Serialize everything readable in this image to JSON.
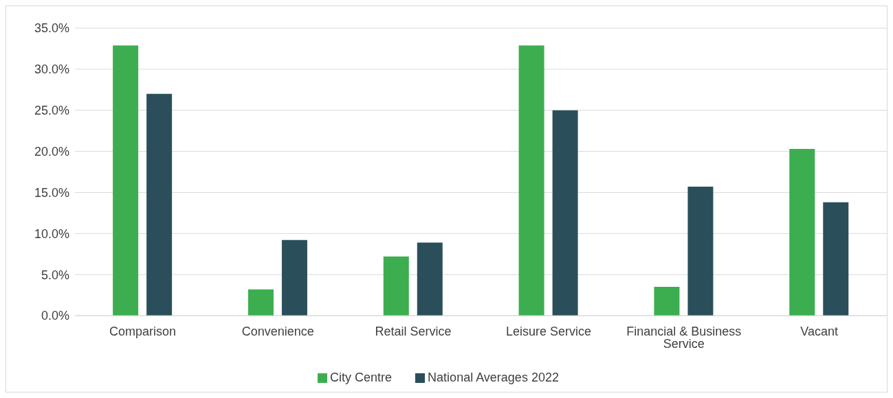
{
  "chart_data": {
    "type": "bar",
    "categories": [
      "Comparison",
      "Convenience",
      "Retail Service",
      "Leisure Service",
      "Financial & Business Service",
      "Vacant"
    ],
    "series": [
      {
        "name": "City Centre",
        "color": "#3cae4f",
        "values": [
          32.9,
          3.2,
          7.2,
          32.9,
          3.5,
          20.3
        ]
      },
      {
        "name": "National Averages 2022",
        "color": "#2b4f5a",
        "values": [
          27.0,
          9.2,
          8.9,
          25.0,
          15.7,
          13.8
        ]
      }
    ],
    "ylim": [
      0,
      35
    ],
    "yticks": [
      {
        "value": 0,
        "label": "0.0%"
      },
      {
        "value": 5,
        "label": "5.0%"
      },
      {
        "value": 10,
        "label": "10.0%"
      },
      {
        "value": 15,
        "label": "15.0%"
      },
      {
        "value": 20,
        "label": "20.0%"
      },
      {
        "value": 25,
        "label": "25.0%"
      },
      {
        "value": 30,
        "label": "30.0%"
      },
      {
        "value": 35,
        "label": "35.0%"
      }
    ],
    "grid": "y",
    "legend": "bottom"
  }
}
